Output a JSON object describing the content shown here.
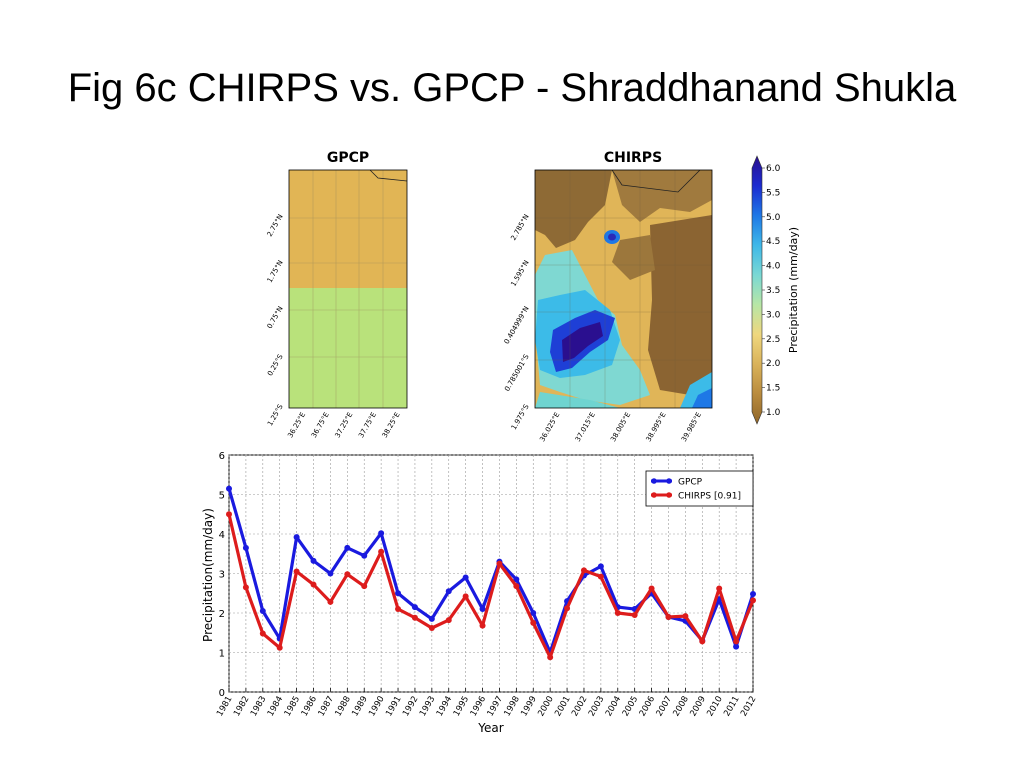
{
  "slide": {
    "title": "Fig 6c CHIRPS vs. GPCP - Shraddhanand Shukla"
  },
  "colors": {
    "gpcp": "#1a1adf",
    "chirps": "#dd1c1c",
    "map_tan": "#e1b555",
    "map_green": "#b9e27b"
  },
  "maps": {
    "gpcp": {
      "title": "GPCP",
      "lat_labels": [
        "2.75°N",
        "1.75°N",
        "0.75°N",
        "0.25°S",
        "1.25°S"
      ],
      "lon_labels": [
        "36.25°E",
        "36.75°E",
        "37.25°E",
        "37.75°E",
        "38.25°E"
      ]
    },
    "chirps": {
      "title": "CHIRPS",
      "lat_labels": [
        "2.785°N",
        "1.595°N",
        "0.404999°N",
        "0.785001°S",
        "1.975°S"
      ],
      "lon_labels": [
        "36.025°E",
        "37.015°E",
        "38.005°E",
        "38.995°E",
        "39.985°E"
      ]
    }
  },
  "colorbar": {
    "label": "Precipitation (mm/day)",
    "ticks": [
      "6.0",
      "5.5",
      "5.0",
      "4.5",
      "4.0",
      "3.5",
      "3.0",
      "2.5",
      "2.0",
      "1.5",
      "1.0"
    ],
    "stops": [
      "#2a0f8f",
      "#1c2bd0",
      "#1e78e6",
      "#3fb8e8",
      "#7ad8d4",
      "#b8e6a6",
      "#efd77e",
      "#d9b25a",
      "#b98b3e",
      "#8f6528"
    ]
  },
  "chart_data": {
    "type": "line",
    "x": [
      1981,
      1982,
      1983,
      1984,
      1985,
      1986,
      1987,
      1988,
      1989,
      1990,
      1991,
      1992,
      1993,
      1994,
      1995,
      1996,
      1997,
      1998,
      1999,
      2000,
      2001,
      2002,
      2003,
      2004,
      2005,
      2006,
      2007,
      2008,
      2009,
      2010,
      2011,
      2012
    ],
    "x_tick_labels": [
      "1981",
      "1982",
      "1983",
      "1984",
      "1985",
      "1986",
      "1987",
      "1988",
      "1989",
      "1990",
      "1991",
      "1992",
      "1993",
      "1994",
      "1995",
      "1996",
      "1997",
      "1998",
      "1999",
      "2000",
      "2001",
      "2002",
      "2003",
      "2004",
      "2005",
      "2006",
      "2007",
      "2008",
      "2009",
      "2010",
      "2011",
      "2012"
    ],
    "series": [
      {
        "name": "GPCP",
        "values": [
          5.15,
          3.65,
          2.05,
          1.35,
          3.92,
          3.32,
          3.0,
          3.65,
          3.45,
          4.02,
          2.5,
          2.15,
          1.85,
          2.55,
          2.9,
          2.1,
          3.3,
          2.85,
          2.0,
          1.0,
          2.3,
          2.95,
          3.18,
          2.15,
          2.1,
          2.5,
          1.9,
          1.8,
          1.3,
          2.35,
          1.15,
          2.48
        ]
      },
      {
        "name": "CHIRPS [0.91]",
        "values": [
          4.5,
          2.65,
          1.48,
          1.12,
          3.05,
          2.72,
          2.28,
          2.98,
          2.68,
          3.55,
          2.1,
          1.88,
          1.62,
          1.82,
          2.42,
          1.68,
          3.25,
          2.68,
          1.75,
          0.88,
          2.12,
          3.08,
          2.92,
          2.0,
          1.95,
          2.62,
          1.9,
          1.92,
          1.28,
          2.62,
          1.28,
          2.32
        ]
      }
    ],
    "xlabel": "Year",
    "ylabel": "Precipitation(mm/day)",
    "ylim": [
      0,
      6
    ],
    "y_ticks": [
      "0",
      "1",
      "2",
      "3",
      "4",
      "5",
      "6"
    ],
    "grid": true,
    "legend_position": "top-right"
  }
}
